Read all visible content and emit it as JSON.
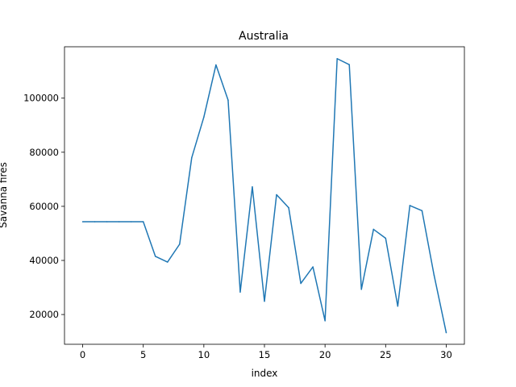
{
  "chart_data": {
    "type": "line",
    "title": "Australia",
    "xlabel": "index",
    "ylabel": "Savanna fires",
    "xlim": [
      -1.5,
      31.5
    ],
    "ylim": [
      9000,
      119000
    ],
    "grid": false,
    "x_ticks": [
      0,
      5,
      10,
      15,
      20,
      25,
      30
    ],
    "y_ticks": [
      20000,
      40000,
      60000,
      80000,
      100000
    ],
    "series": [
      {
        "color": "#1f77b4",
        "x": [
          0,
          1,
          2,
          3,
          4,
          5,
          6,
          7,
          8,
          9,
          10,
          11,
          12,
          13,
          14,
          15,
          16,
          17,
          18,
          19,
          20,
          21,
          22,
          23,
          24,
          25,
          26,
          27,
          28,
          29,
          30
        ],
        "values": [
          54300,
          54300,
          54300,
          54300,
          54300,
          54300,
          41500,
          39400,
          46000,
          78000,
          93000,
          112300,
          99300,
          28300,
          67200,
          24900,
          64300,
          59500,
          31500,
          37600,
          17700,
          114600,
          112400,
          29300,
          51500,
          48200,
          23100,
          60300,
          58400,
          34500,
          13300
        ]
      }
    ]
  }
}
